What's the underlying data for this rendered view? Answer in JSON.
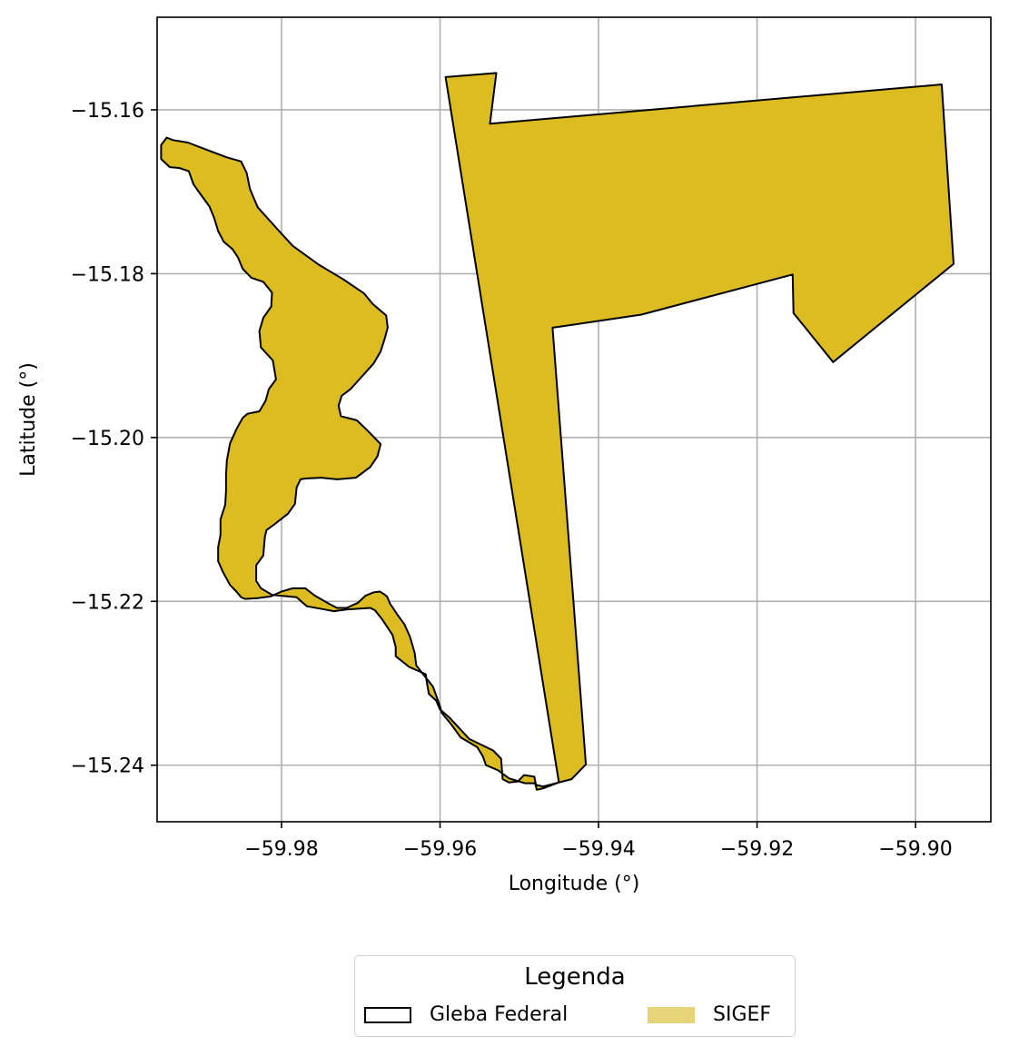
{
  "chart_data": {
    "type": "map",
    "xlabel": "Longitude (°)",
    "ylabel": "Latitude (°)",
    "xlim": [
      -59.9957,
      -59.8905
    ],
    "ylim": [
      -15.2469,
      -15.1487
    ],
    "xticks": [
      -59.98,
      -59.96,
      -59.94,
      -59.92,
      -59.9
    ],
    "yticks": [
      -15.16,
      -15.18,
      -15.2,
      -15.22,
      -15.24
    ],
    "xtick_labels": [
      "−59.98",
      "−59.96",
      "−59.94",
      "−59.92",
      "−59.90"
    ],
    "ytick_labels": [
      "−15.16",
      "−15.18",
      "−15.20",
      "−15.22",
      "−15.24"
    ],
    "grid": true,
    "legend": {
      "title": "Legenda",
      "placement": "bottom-center",
      "entries": [
        {
          "label": "Gleba Federal",
          "fill": "none",
          "edge": "#000000"
        },
        {
          "label": "SIGEF",
          "fill": "#e8d478",
          "edge": "none"
        }
      ]
    },
    "polygon": {
      "name": "SIGEF",
      "fill": "#dcbc20",
      "edge": "#000000",
      "coords": [
        [
          -59.9593,
          -15.156
        ],
        [
          -59.9529,
          -15.1555
        ],
        [
          -59.9537,
          -15.1617
        ],
        [
          -59.8967,
          -15.1569
        ],
        [
          -59.8952,
          -15.1788
        ],
        [
          -59.9104,
          -15.1908
        ],
        [
          -59.9154,
          -15.1848
        ],
        [
          -59.9155,
          -15.1801
        ],
        [
          -59.9346,
          -15.185
        ],
        [
          -59.9458,
          -15.1866
        ],
        [
          -59.9416,
          -15.2399
        ],
        [
          -59.9434,
          -15.2417
        ],
        [
          -59.947,
          -15.2426
        ],
        [
          -59.9479,
          -15.2424
        ],
        [
          -59.9481,
          -15.2414
        ],
        [
          -59.9494,
          -15.2412
        ],
        [
          -59.9502,
          -15.242
        ],
        [
          -59.9513,
          -15.2421
        ],
        [
          -59.9521,
          -15.2417
        ],
        [
          -59.9523,
          -15.2392
        ],
        [
          -59.9533,
          -15.2382
        ],
        [
          -59.9563,
          -15.2368
        ],
        [
          -59.9588,
          -15.2342
        ],
        [
          -59.96,
          -15.2332
        ],
        [
          -59.9605,
          -15.2321
        ],
        [
          -59.9614,
          -15.2313
        ],
        [
          -59.9616,
          -15.2303
        ],
        [
          -59.9617,
          -15.2297
        ],
        [
          -59.9618,
          -15.2289
        ],
        [
          -59.9639,
          -15.228
        ],
        [
          -59.9656,
          -15.2267
        ],
        [
          -59.9656,
          -15.2256
        ],
        [
          -59.966,
          -15.2241
        ],
        [
          -59.9673,
          -15.2222
        ],
        [
          -59.9682,
          -15.2211
        ],
        [
          -59.9688,
          -15.2208
        ],
        [
          -59.9703,
          -15.2209
        ],
        [
          -59.9718,
          -15.221
        ],
        [
          -59.9734,
          -15.2212
        ],
        [
          -59.9745,
          -15.221
        ],
        [
          -59.9768,
          -15.2206
        ],
        [
          -59.9781,
          -15.2195
        ],
        [
          -59.9812,
          -15.2192
        ],
        [
          -59.9826,
          -15.2184
        ],
        [
          -59.9832,
          -15.2175
        ],
        [
          -59.9832,
          -15.2156
        ],
        [
          -59.9823,
          -15.2144
        ],
        [
          -59.9822,
          -15.2132
        ],
        [
          -59.9821,
          -15.2121
        ],
        [
          -59.9819,
          -15.2113
        ],
        [
          -59.9809,
          -15.2106
        ],
        [
          -59.9792,
          -15.2093
        ],
        [
          -59.9783,
          -15.2081
        ],
        [
          -59.9781,
          -15.2061
        ],
        [
          -59.9776,
          -15.2051
        ],
        [
          -59.977,
          -15.205
        ],
        [
          -59.975,
          -15.2049
        ],
        [
          -59.973,
          -15.2051
        ],
        [
          -59.9706,
          -15.2049
        ],
        [
          -59.9688,
          -15.2036
        ],
        [
          -59.9679,
          -15.2023
        ],
        [
          -59.9677,
          -15.2016
        ],
        [
          -59.9675,
          -15.2008
        ],
        [
          -59.9692,
          -15.1991
        ],
        [
          -59.9705,
          -15.1979
        ],
        [
          -59.9725,
          -15.1974
        ],
        [
          -59.9728,
          -15.1961
        ],
        [
          -59.9724,
          -15.1949
        ],
        [
          -59.9713,
          -15.1941
        ],
        [
          -59.97,
          -15.1927
        ],
        [
          -59.9684,
          -15.191
        ],
        [
          -59.9675,
          -15.1895
        ],
        [
          -59.967,
          -15.188
        ],
        [
          -59.9666,
          -15.1866
        ],
        [
          -59.9668,
          -15.1851
        ],
        [
          -59.9685,
          -15.1837
        ],
        [
          -59.9696,
          -15.1824
        ],
        [
          -59.9722,
          -15.1807
        ],
        [
          -59.9753,
          -15.1789
        ],
        [
          -59.9786,
          -15.1766
        ],
        [
          -59.9803,
          -15.1748
        ],
        [
          -59.9818,
          -15.1732
        ],
        [
          -59.983,
          -15.1719
        ],
        [
          -59.9835,
          -15.1708
        ],
        [
          -59.984,
          -15.1696
        ],
        [
          -59.9844,
          -15.1677
        ],
        [
          -59.9851,
          -15.1663
        ],
        [
          -59.9869,
          -15.1658
        ],
        [
          -59.9899,
          -15.1647
        ],
        [
          -59.9918,
          -15.164
        ],
        [
          -59.9937,
          -15.1637
        ],
        [
          -59.9945,
          -15.1634
        ],
        [
          -59.9952,
          -15.1643
        ],
        [
          -59.9952,
          -15.166
        ],
        [
          -59.9941,
          -15.167
        ],
        [
          -59.9929,
          -15.1671
        ],
        [
          -59.9917,
          -15.1675
        ],
        [
          -59.9911,
          -15.1691
        ],
        [
          -59.9903,
          -15.1702
        ],
        [
          -59.9891,
          -15.1718
        ],
        [
          -59.9885,
          -15.1732
        ],
        [
          -59.988,
          -15.1748
        ],
        [
          -59.9873,
          -15.1761
        ],
        [
          -59.9862,
          -15.177
        ],
        [
          -59.9855,
          -15.178
        ],
        [
          -59.9849,
          -15.1794
        ],
        [
          -59.9838,
          -15.1805
        ],
        [
          -59.9823,
          -15.181
        ],
        [
          -59.9812,
          -15.1823
        ],
        [
          -59.9813,
          -15.184
        ],
        [
          -59.9823,
          -15.1854
        ],
        [
          -59.9828,
          -15.187
        ],
        [
          -59.9826,
          -15.189
        ],
        [
          -59.9811,
          -15.1906
        ],
        [
          -59.9807,
          -15.1929
        ],
        [
          -59.9816,
          -15.1941
        ],
        [
          -59.982,
          -15.1955
        ],
        [
          -59.9828,
          -15.1968
        ],
        [
          -59.9843,
          -15.1971
        ],
        [
          -59.9849,
          -15.1976
        ],
        [
          -59.9857,
          -15.199
        ],
        [
          -59.9865,
          -15.2007
        ],
        [
          -59.9869,
          -15.2028
        ],
        [
          -59.987,
          -15.2045
        ],
        [
          -59.987,
          -15.2065
        ],
        [
          -59.9871,
          -15.2082
        ],
        [
          -59.9877,
          -15.21
        ],
        [
          -59.9877,
          -15.2119
        ],
        [
          -59.988,
          -15.2134
        ],
        [
          -59.988,
          -15.2151
        ],
        [
          -59.9874,
          -15.2164
        ],
        [
          -59.9865,
          -15.218
        ],
        [
          -59.9857,
          -15.2188
        ],
        [
          -59.9851,
          -15.2195
        ],
        [
          -59.9846,
          -15.2197
        ],
        [
          -59.983,
          -15.2196
        ],
        [
          -59.9814,
          -15.2194
        ],
        [
          -59.98,
          -15.2188
        ],
        [
          -59.9786,
          -15.2184
        ],
        [
          -59.977,
          -15.2184
        ],
        [
          -59.9758,
          -15.2193
        ],
        [
          -59.974,
          -15.2203
        ],
        [
          -59.973,
          -15.2208
        ],
        [
          -59.9718,
          -15.2208
        ],
        [
          -59.9704,
          -15.2202
        ],
        [
          -59.9694,
          -15.2193
        ],
        [
          -59.9684,
          -15.2189
        ],
        [
          -59.9676,
          -15.2188
        ],
        [
          -59.9671,
          -15.2191
        ],
        [
          -59.9667,
          -15.2194
        ],
        [
          -59.9663,
          -15.2203
        ],
        [
          -59.9654,
          -15.2216
        ],
        [
          -59.9645,
          -15.2228
        ],
        [
          -59.9638,
          -15.2243
        ],
        [
          -59.9632,
          -15.2263
        ],
        [
          -59.963,
          -15.2278
        ],
        [
          -59.9622,
          -15.2288
        ],
        [
          -59.9609,
          -15.2304
        ],
        [
          -59.96,
          -15.2328
        ],
        [
          -59.9598,
          -15.2336
        ],
        [
          -59.9586,
          -15.235
        ],
        [
          -59.9574,
          -15.2366
        ],
        [
          -59.9553,
          -15.2378
        ],
        [
          -59.9546,
          -15.2389
        ],
        [
          -59.9542,
          -15.24
        ],
        [
          -59.9527,
          -15.2406
        ],
        [
          -59.9513,
          -15.2416
        ],
        [
          -59.9493,
          -15.2422
        ],
        [
          -59.948,
          -15.2422
        ],
        [
          -59.9478,
          -15.243
        ],
        [
          -59.9469,
          -15.2428
        ],
        [
          -59.945,
          -15.2421
        ]
      ]
    }
  }
}
